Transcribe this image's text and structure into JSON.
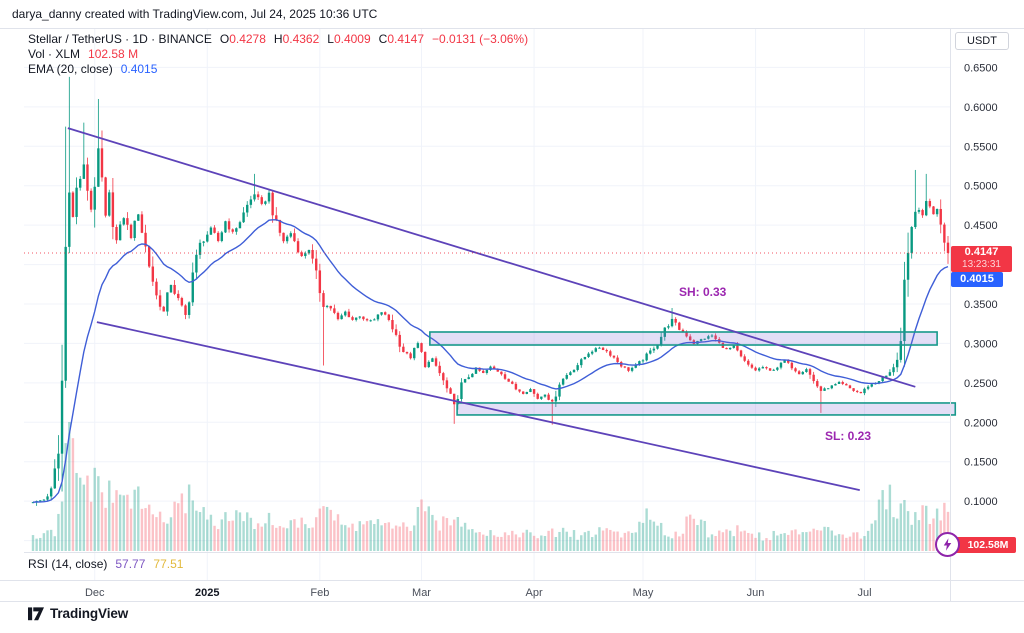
{
  "attribution": "darya_danny created with TradingView.com, Jul 24, 2025 10:36 UTC",
  "legend": {
    "title": "Stellar / TetherUS · 1D · BINANCE",
    "ohlc": [
      {
        "k": "O",
        "v": "0.4278"
      },
      {
        "k": "H",
        "v": "0.4362"
      },
      {
        "k": "L",
        "v": "0.4009"
      },
      {
        "k": "C",
        "v": "0.4147"
      }
    ],
    "change": "−0.0131 (−3.06%)",
    "vol_label": "Vol · XLM",
    "vol_value": "102.58 M",
    "ema_label": "EMA (20, close)",
    "ema_value": "0.4015",
    "rsi_label": "RSI (14, close)",
    "rsi_value1": "57.77",
    "rsi_value2": "77.51"
  },
  "axis": {
    "currency_button": "USDT",
    "price_badge": "0.4147",
    "countdown": "13:23:31",
    "ema_badge": "0.4015",
    "volume_badge": "102.58M"
  },
  "annotations": {
    "sh_label": "SH: 0.33",
    "sl_label": "SL: 0.23"
  },
  "footer": {
    "logo_text": "TradingView"
  },
  "colors": {
    "up": "#089981",
    "down": "#f23645",
    "vol_up": "rgba(8,153,129,0.34)",
    "vol_down": "rgba(242,54,69,0.30)",
    "ema": "#3f5ed7",
    "trendline": "#5d43b9",
    "zone_border": "#18998b",
    "zone_fill": "rgba(126,107,214,0.22)",
    "grid": "#f0f3fa",
    "separator": "#e0e3eb",
    "axis_text": "#2a2e39",
    "month_text": "#4a4f5a",
    "last_price": "#f23645"
  },
  "chart_data": {
    "type": "candlestick",
    "symbol": "Stellar / TetherUS",
    "interval": "1D",
    "exchange": "BINANCE",
    "title": "XLM/USDT daily chart with EMA(20), volume, descending channel, SH/SL zones",
    "last_candle": {
      "open": 0.4278,
      "high": 0.4362,
      "low": 0.4009,
      "close": 0.4147
    },
    "change": -0.0131,
    "change_pct": -3.06,
    "volume_last": "102.58M",
    "ema_period": 20,
    "ema_last": 0.4015,
    "rsi": {
      "period": 14,
      "value": 57.77,
      "ma_value": 77.51
    },
    "last_price_line": 0.4147,
    "y_axis": {
      "min": 0.0,
      "max": 0.7,
      "grid_step": 0.05,
      "labeled_ticks": [
        "0.6500",
        "0.6000",
        "0.5500",
        "0.5000",
        "0.4500",
        "0.3500",
        "0.3000",
        "0.2500",
        "0.2000",
        "0.1500",
        "0.1000"
      ],
      "labeled_tick_values": [
        0.65,
        0.6,
        0.55,
        0.5,
        0.45,
        0.35,
        0.3,
        0.25,
        0.2,
        0.15,
        0.1
      ]
    },
    "x_axis": {
      "days_total": 252,
      "month_ticks": [
        {
          "label": "Dec",
          "day": 17,
          "bold": false
        },
        {
          "label": "2025",
          "day": 48,
          "bold": true
        },
        {
          "label": "Feb",
          "day": 79,
          "bold": false
        },
        {
          "label": "Mar",
          "day": 107,
          "bold": false
        },
        {
          "label": "Apr",
          "day": 138,
          "bold": false
        },
        {
          "label": "May",
          "day": 168,
          "bold": false
        },
        {
          "label": "Jun",
          "day": 199,
          "bold": false
        },
        {
          "label": "Jul",
          "day": 229,
          "bold": false
        }
      ]
    },
    "price_path": [
      [
        0,
        0.099
      ],
      [
        3,
        0.102
      ],
      [
        5,
        0.112
      ],
      [
        7,
        0.16
      ],
      [
        8,
        0.25
      ],
      [
        9,
        0.42
      ],
      [
        10,
        0.5
      ],
      [
        11,
        0.46
      ],
      [
        12,
        0.495
      ],
      [
        14,
        0.525
      ],
      [
        16,
        0.47
      ],
      [
        18,
        0.545
      ],
      [
        20,
        0.46
      ],
      [
        21,
        0.49
      ],
      [
        23,
        0.43
      ],
      [
        25,
        0.46
      ],
      [
        27,
        0.435
      ],
      [
        29,
        0.465
      ],
      [
        32,
        0.4
      ],
      [
        34,
        0.36
      ],
      [
        36,
        0.34
      ],
      [
        38,
        0.375
      ],
      [
        40,
        0.355
      ],
      [
        42,
        0.335
      ],
      [
        44,
        0.39
      ],
      [
        46,
        0.425
      ],
      [
        49,
        0.445
      ],
      [
        51,
        0.43
      ],
      [
        53,
        0.455
      ],
      [
        55,
        0.44
      ],
      [
        57,
        0.455
      ],
      [
        59,
        0.475
      ],
      [
        61,
        0.49
      ],
      [
        63,
        0.475
      ],
      [
        65,
        0.49
      ],
      [
        67,
        0.45
      ],
      [
        69,
        0.43
      ],
      [
        71,
        0.44
      ],
      [
        74,
        0.41
      ],
      [
        76,
        0.42
      ],
      [
        78,
        0.385
      ],
      [
        80,
        0.35
      ],
      [
        82,
        0.345
      ],
      [
        84,
        0.33
      ],
      [
        86,
        0.34
      ],
      [
        88,
        0.33
      ],
      [
        90,
        0.335
      ],
      [
        92,
        0.328
      ],
      [
        94,
        0.33
      ],
      [
        96,
        0.34
      ],
      [
        98,
        0.33
      ],
      [
        100,
        0.31
      ],
      [
        102,
        0.29
      ],
      [
        104,
        0.282
      ],
      [
        106,
        0.3
      ],
      [
        108,
        0.272
      ],
      [
        110,
        0.28
      ],
      [
        112,
        0.262
      ],
      [
        114,
        0.242
      ],
      [
        116,
        0.222
      ],
      [
        118,
        0.248
      ],
      [
        120,
        0.258
      ],
      [
        122,
        0.268
      ],
      [
        124,
        0.262
      ],
      [
        126,
        0.27
      ],
      [
        129,
        0.262
      ],
      [
        131,
        0.252
      ],
      [
        133,
        0.242
      ],
      [
        135,
        0.237
      ],
      [
        137,
        0.242
      ],
      [
        139,
        0.23
      ],
      [
        141,
        0.236
      ],
      [
        143,
        0.225
      ],
      [
        145,
        0.25
      ],
      [
        147,
        0.26
      ],
      [
        149,
        0.268
      ],
      [
        151,
        0.278
      ],
      [
        153,
        0.288
      ],
      [
        156,
        0.295
      ],
      [
        158,
        0.29
      ],
      [
        160,
        0.282
      ],
      [
        162,
        0.272
      ],
      [
        164,
        0.266
      ],
      [
        166,
        0.272
      ],
      [
        168,
        0.28
      ],
      [
        170,
        0.29
      ],
      [
        172,
        0.3
      ],
      [
        174,
        0.318
      ],
      [
        176,
        0.33
      ],
      [
        178,
        0.318
      ],
      [
        180,
        0.31
      ],
      [
        182,
        0.3
      ],
      [
        184,
        0.305
      ],
      [
        187,
        0.31
      ],
      [
        189,
        0.3
      ],
      [
        191,
        0.292
      ],
      [
        193,
        0.296
      ],
      [
        195,
        0.282
      ],
      [
        197,
        0.272
      ],
      [
        199,
        0.266
      ],
      [
        201,
        0.27
      ],
      [
        203,
        0.265
      ],
      [
        205,
        0.27
      ],
      [
        207,
        0.278
      ],
      [
        209,
        0.27
      ],
      [
        211,
        0.262
      ],
      [
        213,
        0.268
      ],
      [
        215,
        0.252
      ],
      [
        217,
        0.24
      ],
      [
        220,
        0.246
      ],
      [
        222,
        0.25
      ],
      [
        224,
        0.246
      ],
      [
        226,
        0.24
      ],
      [
        228,
        0.237
      ],
      [
        230,
        0.246
      ],
      [
        232,
        0.25
      ],
      [
        234,
        0.256
      ],
      [
        236,
        0.262
      ],
      [
        238,
        0.282
      ],
      [
        239,
        0.3
      ],
      [
        240,
        0.36
      ],
      [
        241,
        0.4
      ],
      [
        242,
        0.44
      ],
      [
        243,
        0.472
      ],
      [
        245,
        0.462
      ],
      [
        246,
        0.482
      ],
      [
        247,
        0.472
      ],
      [
        248,
        0.465
      ],
      [
        249,
        0.472
      ],
      [
        251,
        0.437
      ],
      [
        252,
        0.4147
      ]
    ],
    "wick_overrides": {
      "high": [
        [
          9,
          0.575
        ],
        [
          10,
          0.638
        ],
        [
          14,
          0.58
        ],
        [
          18,
          0.61
        ],
        [
          61,
          0.515
        ],
        [
          176,
          0.345
        ],
        [
          243,
          0.52
        ],
        [
          246,
          0.515
        ]
      ],
      "low": [
        [
          1,
          0.094
        ],
        [
          80,
          0.272
        ],
        [
          116,
          0.198
        ],
        [
          143,
          0.197
        ],
        [
          217,
          0.212
        ]
      ]
    },
    "volume_path": [
      [
        0,
        0.1
      ],
      [
        6,
        0.14
      ],
      [
        8,
        0.35
      ],
      [
        10,
        1.0
      ],
      [
        11,
        0.8
      ],
      [
        12,
        0.55
      ],
      [
        14,
        0.6
      ],
      [
        16,
        0.48
      ],
      [
        18,
        0.52
      ],
      [
        20,
        0.44
      ],
      [
        24,
        0.4
      ],
      [
        27,
        0.44
      ],
      [
        30,
        0.36
      ],
      [
        33,
        0.3
      ],
      [
        36,
        0.24
      ],
      [
        40,
        0.32
      ],
      [
        44,
        0.46
      ],
      [
        46,
        0.34
      ],
      [
        48,
        0.26
      ],
      [
        52,
        0.22
      ],
      [
        56,
        0.28
      ],
      [
        60,
        0.22
      ],
      [
        64,
        0.24
      ],
      [
        68,
        0.2
      ],
      [
        72,
        0.22
      ],
      [
        76,
        0.18
      ],
      [
        80,
        0.4
      ],
      [
        82,
        0.3
      ],
      [
        84,
        0.22
      ],
      [
        88,
        0.18
      ],
      [
        92,
        0.24
      ],
      [
        96,
        0.2
      ],
      [
        100,
        0.16
      ],
      [
        104,
        0.2
      ],
      [
        107,
        0.32
      ],
      [
        110,
        0.24
      ],
      [
        114,
        0.2
      ],
      [
        118,
        0.26
      ],
      [
        122,
        0.18
      ],
      [
        126,
        0.14
      ],
      [
        130,
        0.13
      ],
      [
        134,
        0.15
      ],
      [
        138,
        0.11
      ],
      [
        142,
        0.13
      ],
      [
        146,
        0.15
      ],
      [
        150,
        0.12
      ],
      [
        154,
        0.14
      ],
      [
        158,
        0.17
      ],
      [
        162,
        0.13
      ],
      [
        166,
        0.15
      ],
      [
        168,
        0.3
      ],
      [
        170,
        0.22
      ],
      [
        174,
        0.15
      ],
      [
        178,
        0.13
      ],
      [
        182,
        0.32
      ],
      [
        184,
        0.24
      ],
      [
        186,
        0.15
      ],
      [
        190,
        0.13
      ],
      [
        194,
        0.17
      ],
      [
        198,
        0.13
      ],
      [
        202,
        0.11
      ],
      [
        206,
        0.13
      ],
      [
        210,
        0.15
      ],
      [
        214,
        0.12
      ],
      [
        218,
        0.22
      ],
      [
        222,
        0.14
      ],
      [
        226,
        0.13
      ],
      [
        230,
        0.12
      ],
      [
        232,
        0.32
      ],
      [
        234,
        0.48
      ],
      [
        236,
        0.42
      ],
      [
        238,
        0.32
      ],
      [
        240,
        0.34
      ],
      [
        242,
        0.27
      ],
      [
        244,
        0.32
      ],
      [
        246,
        0.3
      ],
      [
        248,
        0.27
      ],
      [
        250,
        0.32
      ],
      [
        252,
        0.34
      ]
    ],
    "trendlines": [
      {
        "name": "upper-channel-line",
        "d1": 9.6,
        "p1": 0.573,
        "d2": 243.0,
        "p2": 0.245
      },
      {
        "name": "lower-channel-line",
        "d1": 17.6,
        "p1": 0.327,
        "d2": 227.7,
        "p2": 0.114
      }
    ],
    "zones": [
      {
        "name": "swing-high-zone",
        "label": "SH: 0.33",
        "d1": 109.3,
        "d2": 249.0,
        "p1": 0.298,
        "p2": 0.3145
      },
      {
        "name": "swing-low-zone",
        "label": "SL: 0.23",
        "d1": 116.8,
        "d2": 254.0,
        "p1": 0.2093,
        "p2": 0.2245
      }
    ]
  }
}
